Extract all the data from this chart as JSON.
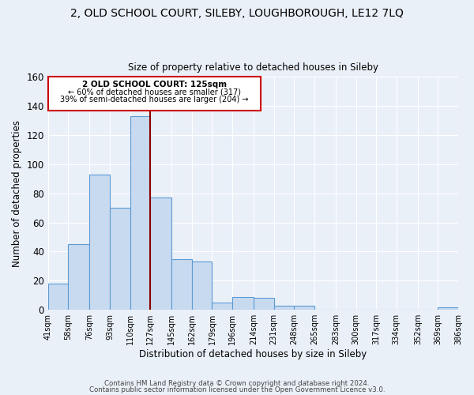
{
  "title": "2, OLD SCHOOL COURT, SILEBY, LOUGHBOROUGH, LE12 7LQ",
  "subtitle": "Size of property relative to detached houses in Sileby",
  "xlabel": "Distribution of detached houses by size in Sileby",
  "ylabel": "Number of detached properties",
  "bar_color": "#c8daf0",
  "bar_edge_color": "#5b9bd5",
  "background_color": "#eaf0f8",
  "grid_color": "#ffffff",
  "vline_x": 127,
  "vline_color": "#8b0000",
  "bin_edges": [
    41,
    58,
    76,
    93,
    110,
    127,
    145,
    162,
    179,
    196,
    214,
    231,
    248,
    265,
    283,
    300,
    317,
    334,
    352,
    369,
    386
  ],
  "bin_heights": [
    18,
    45,
    93,
    70,
    133,
    77,
    35,
    33,
    5,
    9,
    8,
    3,
    3,
    0,
    0,
    0,
    0,
    0,
    0,
    2
  ],
  "tick_labels": [
    "41sqm",
    "58sqm",
    "76sqm",
    "93sqm",
    "110sqm",
    "127sqm",
    "145sqm",
    "162sqm",
    "179sqm",
    "196sqm",
    "214sqm",
    "231sqm",
    "248sqm",
    "265sqm",
    "283sqm",
    "300sqm",
    "317sqm",
    "334sqm",
    "352sqm",
    "369sqm",
    "386sqm"
  ],
  "ylim": [
    0,
    160
  ],
  "yticks": [
    0,
    20,
    40,
    60,
    80,
    100,
    120,
    140,
    160
  ],
  "annotation_title": "2 OLD SCHOOL COURT: 125sqm",
  "annotation_line1": "← 60% of detached houses are smaller (317)",
  "annotation_line2": "39% of semi-detached houses are larger (204) →",
  "annotation_box_color": "#ffffff",
  "annotation_box_edge": "#cc0000",
  "footer1": "Contains HM Land Registry data © Crown copyright and database right 2024.",
  "footer2": "Contains public sector information licensed under the Open Government Licence v3.0."
}
